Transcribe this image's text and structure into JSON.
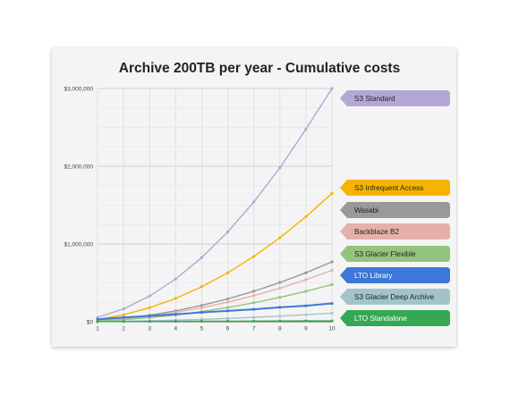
{
  "chart_data": {
    "type": "line",
    "title": "Archive 200TB per year - Cumulative costs",
    "x": [
      1,
      2,
      3,
      4,
      5,
      6,
      7,
      8,
      9,
      10
    ],
    "xlim": [
      1,
      10
    ],
    "ylim": [
      0,
      3000000
    ],
    "yticks": [
      0,
      1000000,
      2000000,
      3000000
    ],
    "ytick_labels": [
      "$0",
      "$1,000,000",
      "$2,000,000",
      "$3,000,000"
    ],
    "xtick_labels": [
      "1",
      "2",
      "3",
      "4",
      "5",
      "6",
      "7",
      "8",
      "9",
      "10"
    ],
    "grid": true,
    "legend_position": "right",
    "series": [
      {
        "name": "S3 Standard",
        "color": "#b4a7d6",
        "values": [
          55000,
          165000,
          330000,
          550000,
          825000,
          1155000,
          1540000,
          1980000,
          2475000,
          3025000
        ]
      },
      {
        "name": "S3 Infrequent Access",
        "color": "#f6b400",
        "values": [
          30000,
          90000,
          180000,
          300000,
          450000,
          630000,
          840000,
          1080000,
          1350000,
          1650000
        ]
      },
      {
        "name": "Wasabi",
        "color": "#999999",
        "values": [
          14000,
          42000,
          84000,
          140000,
          210000,
          294000,
          392000,
          504000,
          630000,
          770000
        ]
      },
      {
        "name": "Backblaze B2",
        "color": "#e6b0aa",
        "values": [
          12000,
          36000,
          72000,
          120000,
          180000,
          252000,
          336000,
          432000,
          540000,
          660000
        ]
      },
      {
        "name": "S3 Glacier Flexible",
        "color": "#93c47d",
        "values": [
          8700,
          26000,
          52000,
          87000,
          130000,
          183000,
          244000,
          313000,
          391000,
          478000
        ]
      },
      {
        "name": "LTO Library",
        "color": "#3c78d8",
        "values": [
          30000,
          55000,
          75000,
          95000,
          120000,
          140000,
          160000,
          185000,
          205000,
          235000
        ]
      },
      {
        "name": "S3 Glacier Deep Archive",
        "color": "#a2c4c9",
        "values": [
          2000,
          6000,
          12000,
          20000,
          30000,
          42000,
          56000,
          72000,
          90000,
          110000
        ]
      },
      {
        "name": "LTO Standalone",
        "color": "#34a853",
        "values": [
          2000,
          3000,
          4000,
          5000,
          6000,
          7000,
          8000,
          9000,
          10000,
          11000
        ]
      }
    ]
  }
}
